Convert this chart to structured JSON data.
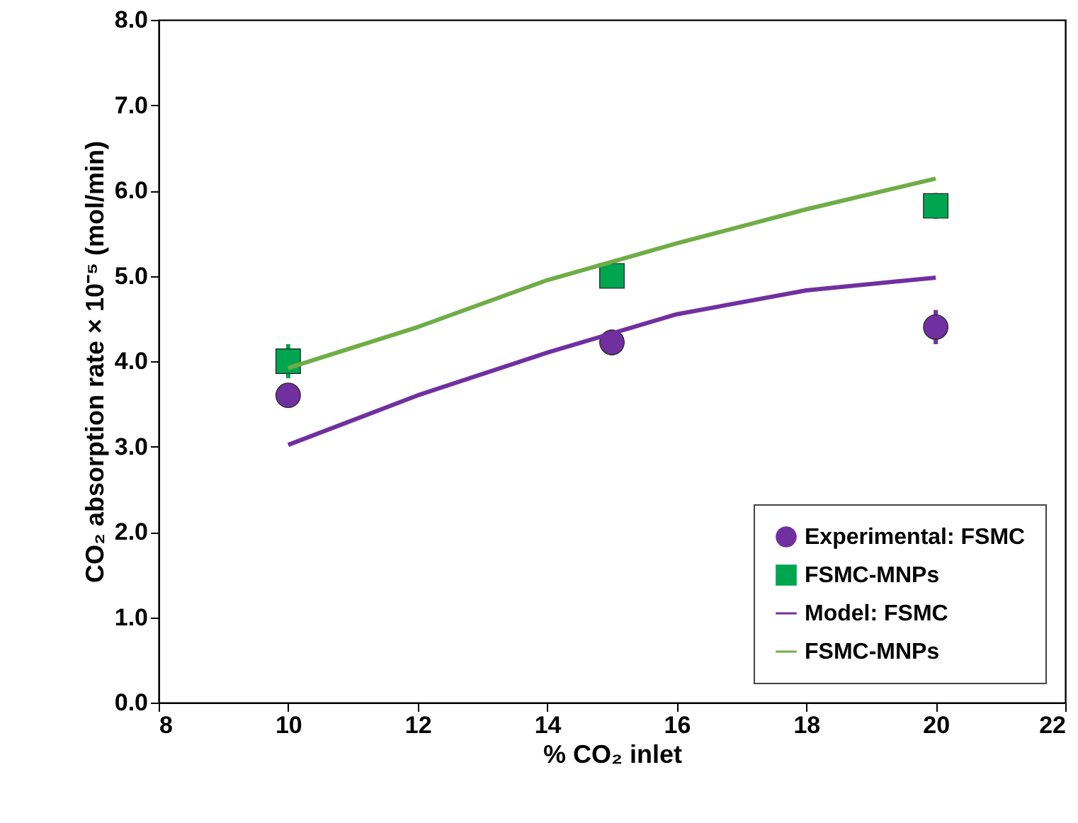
{
  "chart_data": {
    "type": "scatter",
    "xlabel": "% CO₂ inlet",
    "ylabel": "CO₂ absorption rate × 10⁻⁵ (mol/min)",
    "xlim": [
      8,
      22
    ],
    "xticks": [
      8,
      10,
      12,
      14,
      16,
      18,
      20,
      22
    ],
    "ylim": [
      0,
      8
    ],
    "yticks": [
      {
        "value": 0,
        "label": "0.0"
      },
      {
        "value": 1,
        "label": "1.0"
      },
      {
        "value": 2,
        "label": "2.0"
      },
      {
        "value": 3,
        "label": "3.0"
      },
      {
        "value": 4,
        "label": "4.0"
      },
      {
        "value": 5,
        "label": "5.0"
      },
      {
        "value": 6,
        "label": "6.0"
      },
      {
        "value": 7,
        "label": "7.0"
      },
      {
        "value": 8,
        "label": "8.0"
      }
    ],
    "grid": false,
    "legend": "bottom right",
    "series": [
      {
        "name": "Experimental: FSMC",
        "marker": "circle",
        "color": "#7030a0",
        "x": [
          10,
          15,
          20
        ],
        "values": [
          3.6,
          4.22,
          4.4
        ],
        "errors": [
          0.1,
          0.15,
          0.2
        ]
      },
      {
        "name": "FSMC-MNPs",
        "marker": "square",
        "color": "#00a550",
        "x": [
          10,
          15,
          20
        ],
        "values": [
          4.0,
          5.0,
          5.82
        ],
        "errors": [
          0.2,
          null,
          0.15
        ]
      },
      {
        "name": "Model: FSMC",
        "type": "line",
        "line_style": "solid",
        "color": "#7030a0",
        "x": [
          10,
          12,
          14,
          16,
          18,
          20
        ],
        "values": [
          3.02,
          3.6,
          4.1,
          4.55,
          4.83,
          4.98
        ]
      },
      {
        "name": "FSMC-MNPs",
        "type": "line",
        "line_style": "solid",
        "color": "#70ad47",
        "x": [
          10,
          12,
          14,
          16,
          18,
          20
        ],
        "values": [
          3.92,
          4.4,
          4.95,
          5.38,
          5.78,
          6.14
        ]
      }
    ]
  }
}
